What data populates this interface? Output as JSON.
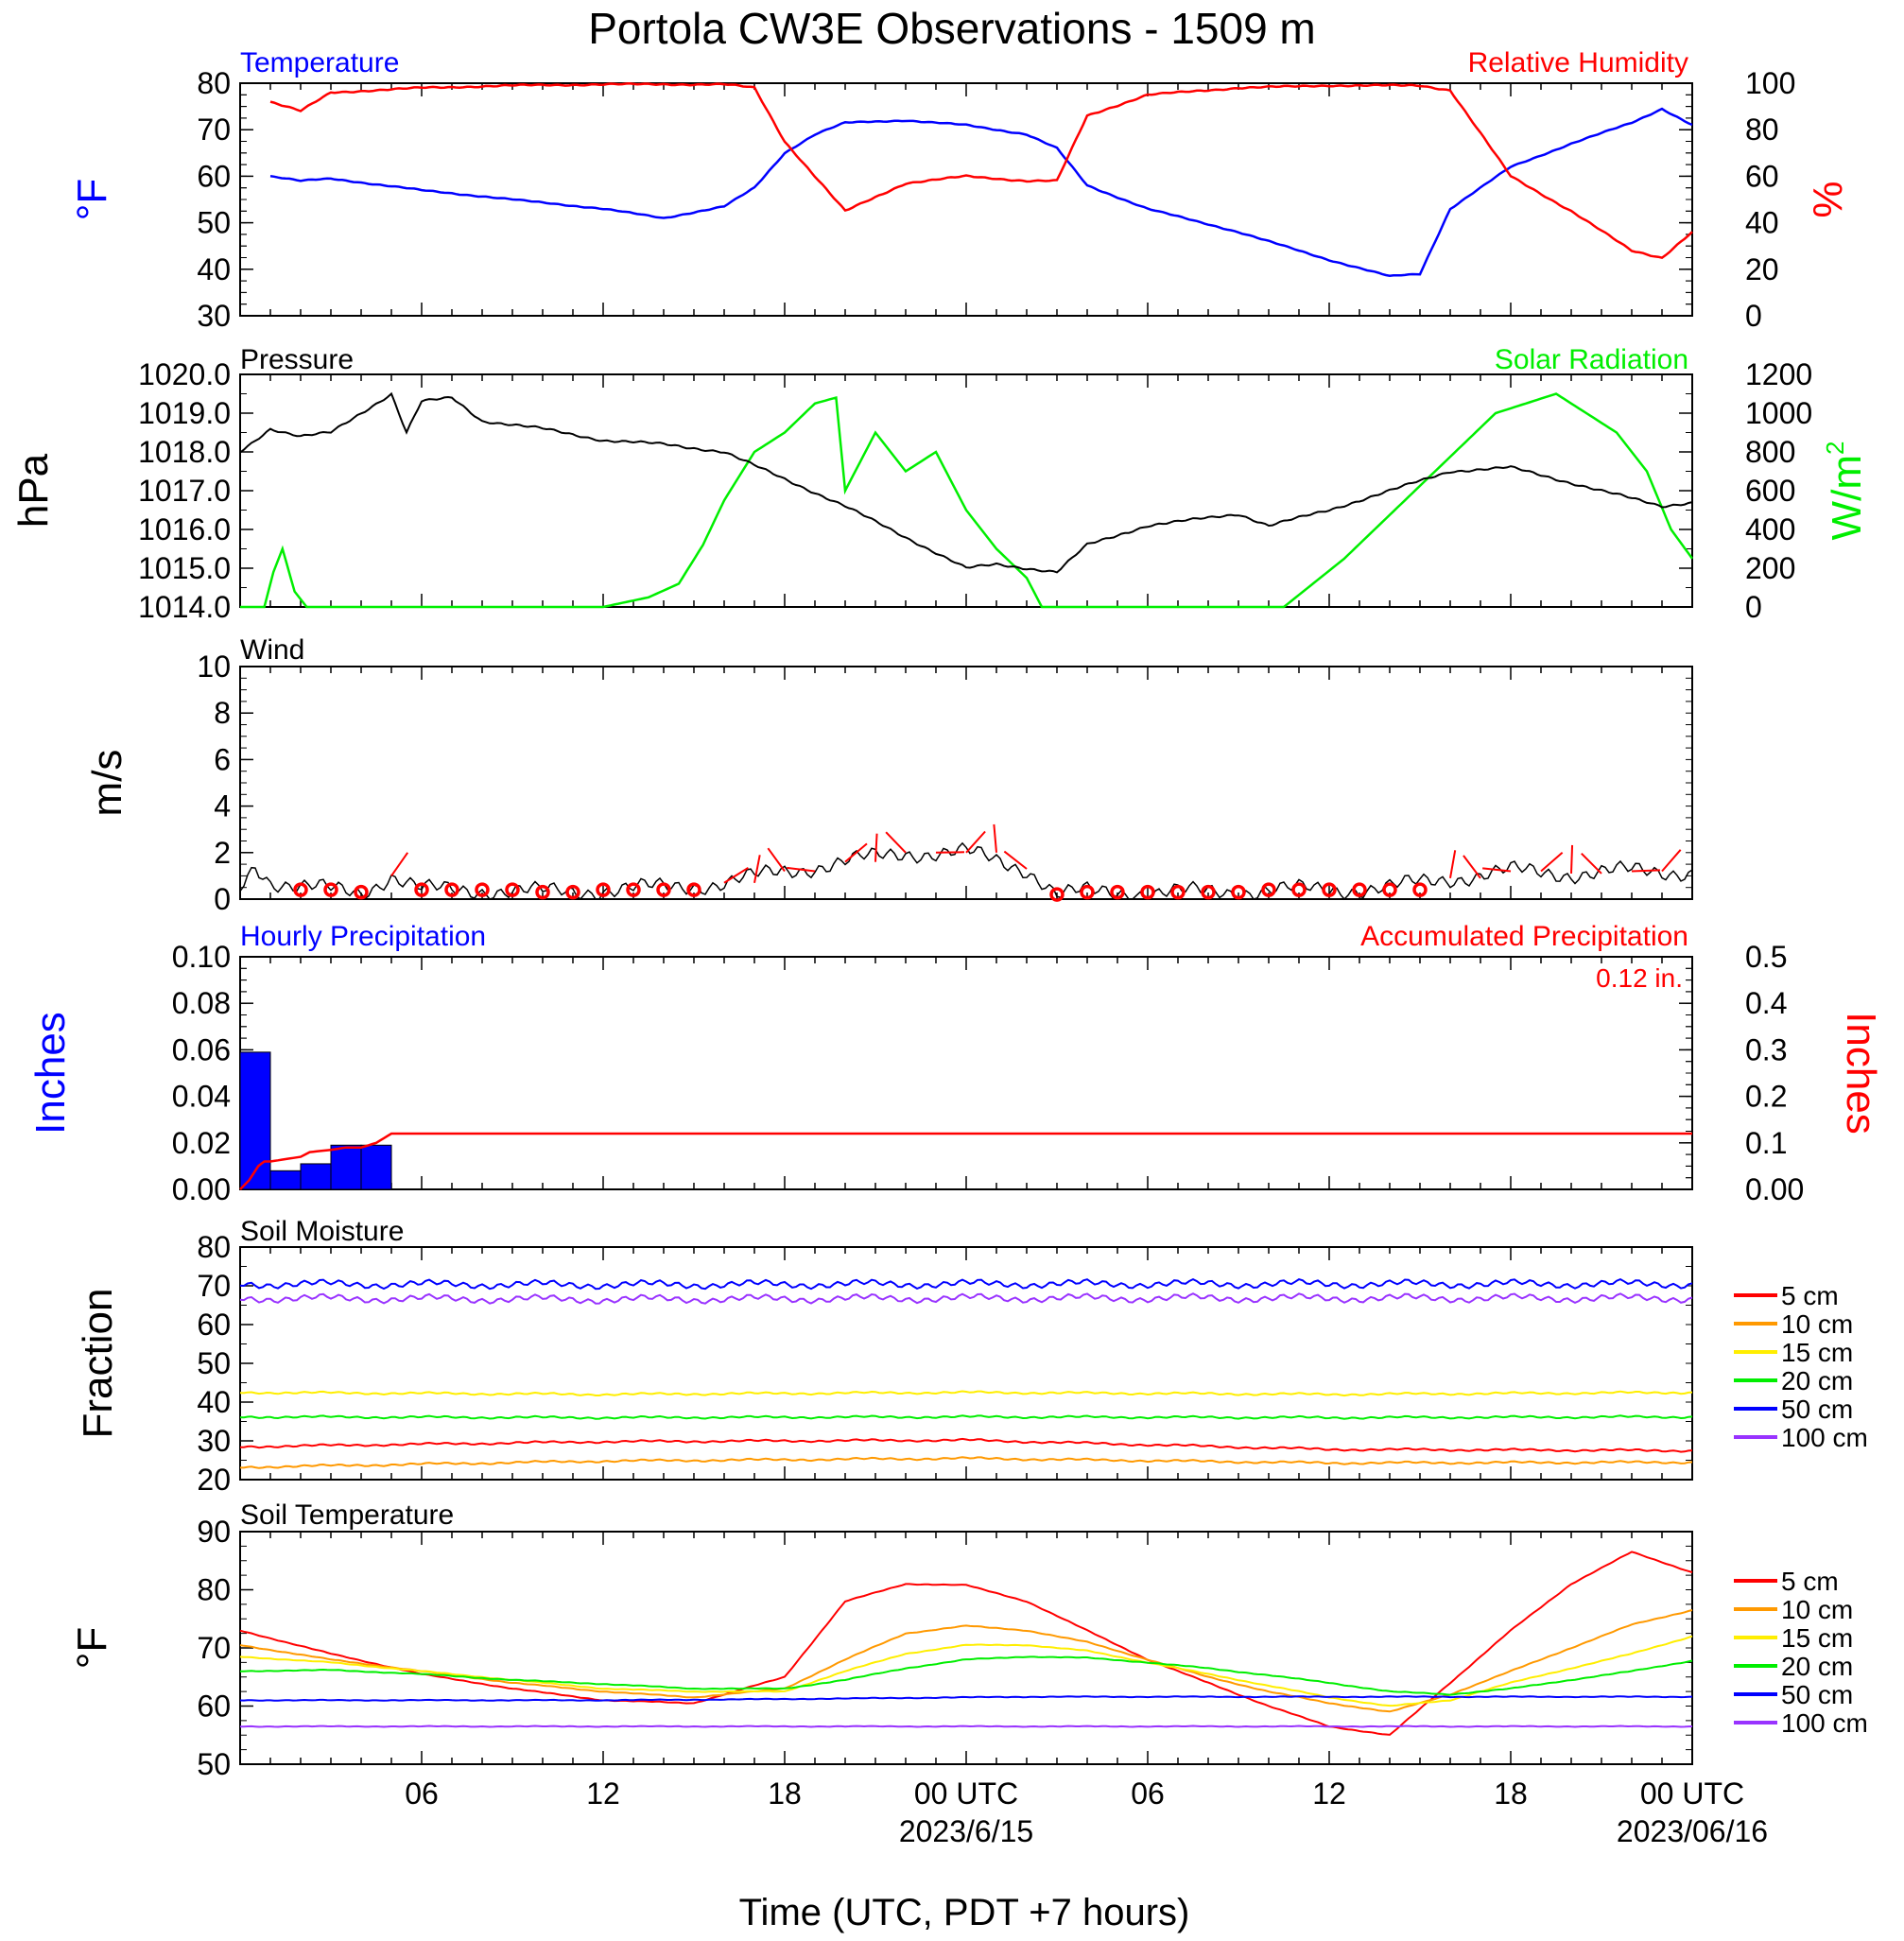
{
  "title": "Portola CW3E Observations - 1509 m",
  "xlabel": "Time (UTC, PDT +7 hours)",
  "x_ticks": [
    "06",
    "12",
    "18",
    "00 UTC",
    "06",
    "12",
    "18",
    "00 UTC"
  ],
  "x_dates": [
    "2023/6/15",
    "2023/06/16"
  ],
  "colors": {
    "temperature": "#0000ff",
    "humidity": "#ff0000",
    "pressure": "#000000",
    "solar": "#00ee00",
    "precip_bar": "#0000ff",
    "precip_accum": "#ff0000"
  },
  "chart_data": [
    {
      "type": "line",
      "title": "Temperature / Relative Humidity",
      "left_label": "Temperature",
      "right_label": "Relative Humidity",
      "left_unit": "°F",
      "right_unit": "%",
      "ylim": [
        30,
        80
      ],
      "y_ticks": [
        "80",
        "70",
        "60",
        "50",
        "40",
        "30"
      ],
      "y2lim": [
        0,
        100
      ],
      "y2_ticks": [
        "100",
        "80",
        "60",
        "40",
        "20",
        "0"
      ],
      "x_hours": [
        1,
        2,
        3,
        6,
        9,
        12,
        14,
        16,
        17,
        18,
        19,
        20,
        22,
        24,
        26,
        27,
        28,
        30,
        33,
        36,
        38,
        39,
        40,
        42,
        44,
        46,
        47,
        48
      ],
      "series": [
        {
          "name": "Temperature",
          "values": [
            60,
            59,
            59.5,
            57,
            55,
            53,
            51,
            53.5,
            57.5,
            65,
            69,
            71.5,
            72,
            71,
            69,
            66,
            58,
            53,
            48,
            42,
            38.5,
            39,
            53,
            62,
            67,
            71.5,
            74.5,
            71
          ]
        },
        {
          "name": "Relative Humidity",
          "values": [
            92,
            88,
            96,
            98,
            99,
            99.5,
            99.5,
            99.5,
            98,
            75,
            60,
            45,
            57,
            60,
            58,
            58,
            86,
            95,
            98,
            99,
            99,
            99,
            97,
            60,
            45,
            28,
            25,
            36
          ]
        }
      ]
    },
    {
      "type": "line",
      "title": "Pressure / Solar Radiation",
      "left_label": "Pressure",
      "right_label": "Solar Radiation",
      "left_unit": "hPa",
      "right_unit": "W/m",
      "right_unit_sup": "2",
      "ylim": [
        1014.0,
        1020.0
      ],
      "y_ticks": [
        "1020.0",
        "1019.0",
        "1018.0",
        "1017.0",
        "1016.0",
        "1015.0",
        "1014.0"
      ],
      "y2lim": [
        0,
        1200
      ],
      "y2_ticks": [
        "1200",
        "1000",
        "800",
        "600",
        "400",
        "200",
        "0"
      ],
      "pressure_x": [
        0,
        1,
        2,
        3,
        4,
        5,
        5.5,
        6,
        7,
        8,
        10,
        12,
        14,
        15,
        16,
        18,
        20,
        22,
        23,
        24,
        25,
        26,
        27,
        28,
        30,
        33,
        34,
        36,
        38,
        40,
        42,
        44,
        46,
        47,
        48
      ],
      "pressure_values": [
        1018.0,
        1018.6,
        1018.4,
        1018.5,
        1019.0,
        1019.5,
        1018.5,
        1019.3,
        1019.4,
        1018.8,
        1018.6,
        1018.3,
        1018.2,
        1018.1,
        1018.0,
        1017.3,
        1016.6,
        1015.8,
        1015.4,
        1015.0,
        1015.1,
        1015.0,
        1014.9,
        1015.6,
        1016.1,
        1016.4,
        1016.1,
        1016.5,
        1017.0,
        1017.5,
        1017.6,
        1017.2,
        1016.8,
        1016.6,
        1016.7
      ],
      "solar_x": [
        0,
        0.8,
        1.1,
        1.4,
        1.8,
        2.2,
        12,
        13.5,
        14.5,
        15.3,
        16,
        17,
        18,
        19,
        19.7,
        20,
        21,
        22,
        23,
        24,
        25,
        26,
        26.5,
        34.5,
        36.5,
        37.5,
        38.5,
        39.5,
        40.5,
        41.5,
        42.5,
        43.5,
        44.5,
        45.5,
        46.5,
        47.3,
        48
      ],
      "solar_values": [
        0,
        0,
        180,
        300,
        80,
        0,
        0,
        50,
        120,
        320,
        550,
        800,
        900,
        1050,
        1080,
        600,
        900,
        700,
        800,
        500,
        300,
        150,
        0,
        0,
        250,
        400,
        550,
        700,
        850,
        1000,
        1050,
        1100,
        1000,
        900,
        700,
        400,
        250
      ]
    },
    {
      "type": "line",
      "title": "Wind",
      "ylabel": "m/s",
      "ylim": [
        0,
        10
      ],
      "y_ticks": [
        "10",
        "8",
        "6",
        "4",
        "2",
        "0"
      ],
      "x_hours": [
        0,
        0.5,
        1,
        2,
        3,
        4,
        5,
        6,
        8,
        10,
        12,
        14,
        16,
        18,
        20,
        22,
        24,
        26,
        26.5,
        27,
        28,
        30,
        32,
        34,
        36,
        38,
        40,
        42,
        44,
        46,
        48
      ],
      "values": [
        0.5,
        1.5,
        0.8,
        0.5,
        0.4,
        0.3,
        1.0,
        0.4,
        0.4,
        0.3,
        0.4,
        0.5,
        0.7,
        1.2,
        1.6,
        2.0,
        2.0,
        1.3,
        0.8,
        0.2,
        0.3,
        0.3,
        0.3,
        0.4,
        0.4,
        0.5,
        0.9,
        1.2,
        1.1,
        1.2,
        1.2
      ]
    },
    {
      "type": "bar",
      "title": "Hourly / Accumulated Precipitation",
      "left_label": "Hourly Precipitation",
      "right_label": "Accumulated Precipitation",
      "ylabel": "Inches",
      "y2label": "Inches",
      "annotation": "0.12 in.",
      "ylim": [
        0,
        0.1
      ],
      "y_ticks": [
        "0.10",
        "0.08",
        "0.06",
        "0.04",
        "0.02",
        "0.00"
      ],
      "y2lim": [
        0,
        0.5
      ],
      "y2_ticks": [
        "0.5",
        "0.4",
        "0.3",
        "0.2",
        "0.1",
        "0.00"
      ],
      "bar_start_hours": [
        1,
        2,
        3,
        4,
        5
      ],
      "bar_values": [
        0.059,
        0.008,
        0.011,
        0.019,
        0.019
      ],
      "accum_x": [
        1,
        1.3,
        1.6,
        1.8,
        2,
        3,
        3.3,
        4,
        4.5,
        5,
        5.5,
        6,
        49
      ],
      "accum_values": [
        0,
        0.02,
        0.05,
        0.06,
        0.06,
        0.07,
        0.08,
        0.085,
        0.09,
        0.09,
        0.1,
        0.12,
        0.12
      ]
    },
    {
      "type": "line",
      "title": "Soil Moisture",
      "ylabel": "Fraction",
      "ylim": [
        20,
        80
      ],
      "y_ticks": [
        "80",
        "70",
        "60",
        "50",
        "40",
        "30",
        "20"
      ],
      "x_hours": [
        0,
        12,
        24,
        36,
        48
      ],
      "series": [
        {
          "name": "5 cm",
          "values": [
            28.5,
            29.8,
            30.2,
            27.8,
            27.5
          ]
        },
        {
          "name": "10 cm",
          "values": [
            23.2,
            24.8,
            25.5,
            24.3,
            24.5
          ]
        },
        {
          "name": "15 cm",
          "values": [
            42.5,
            42.0,
            42.5,
            42.0,
            42.5
          ]
        },
        {
          "name": "20 cm",
          "values": [
            36.2,
            36.0,
            36.2,
            36.0,
            36.2
          ]
        },
        {
          "name": "50 cm",
          "values": [
            70.5,
            70.3,
            70.5,
            70.5,
            70.5
          ]
        },
        {
          "name": "100 cm",
          "values": [
            66.8,
            66.5,
            66.8,
            66.8,
            66.8
          ]
        }
      ]
    },
    {
      "type": "line",
      "title": "Soil Temperature",
      "ylabel": "°F",
      "ylim": [
        50,
        90
      ],
      "y_ticks": [
        "90",
        "80",
        "70",
        "60",
        "50"
      ],
      "x_hours": [
        0,
        3,
        6,
        9,
        12,
        15,
        18,
        20,
        22,
        24,
        26,
        28,
        30,
        32,
        34,
        36,
        38,
        40,
        42,
        44,
        46,
        48
      ],
      "series": [
        {
          "name": "5 cm",
          "values": [
            73,
            69,
            65.5,
            63,
            61,
            60.5,
            65,
            78,
            81,
            80.8,
            78,
            73,
            68,
            64,
            60,
            56.5,
            55,
            64,
            73,
            81,
            86.5,
            83
          ]
        },
        {
          "name": "10 cm",
          "values": [
            70.5,
            68,
            66,
            64,
            62.5,
            61.5,
            63,
            68,
            72.5,
            73.8,
            73,
            71,
            68,
            65,
            62.5,
            60.5,
            59,
            62,
            66,
            70,
            74,
            76.5
          ]
        },
        {
          "name": "15 cm",
          "values": [
            68.5,
            67.5,
            66,
            64.5,
            63,
            62.5,
            62.5,
            66,
            69,
            70.5,
            70.5,
            69.5,
            67.5,
            65.5,
            63.5,
            61.5,
            60,
            61,
            64,
            66.5,
            69,
            72
          ]
        },
        {
          "name": "20 cm",
          "values": [
            66,
            66.2,
            65.5,
            64.5,
            63.8,
            63,
            63,
            64.5,
            66.5,
            68,
            68.5,
            68.3,
            67.5,
            66.5,
            65.3,
            64,
            62.5,
            62,
            63,
            64.5,
            66,
            67.8
          ]
        },
        {
          "name": "50 cm",
          "values": [
            61,
            61,
            61,
            61,
            61,
            61.1,
            61.2,
            61.3,
            61.4,
            61.5,
            61.6,
            61.6,
            61.6,
            61.6,
            61.6,
            61.6,
            61.6,
            61.6,
            61.6,
            61.6,
            61.6,
            61.6
          ]
        },
        {
          "name": "100 cm",
          "values": [
            56.5,
            56.5,
            56.5,
            56.5,
            56.5,
            56.5,
            56.5,
            56.5,
            56.5,
            56.5,
            56.5,
            56.5,
            56.5,
            56.5,
            56.5,
            56.5,
            56.5,
            56.5,
            56.5,
            56.5,
            56.5,
            56.5
          ]
        }
      ]
    }
  ],
  "soil_legend": [
    "5 cm",
    "10 cm",
    "15 cm",
    "20 cm",
    "50 cm",
    "100 cm"
  ],
  "soil_colors": [
    "#ff0000",
    "#ff9900",
    "#ffee00",
    "#00ee00",
    "#0000ff",
    "#9933ff"
  ]
}
